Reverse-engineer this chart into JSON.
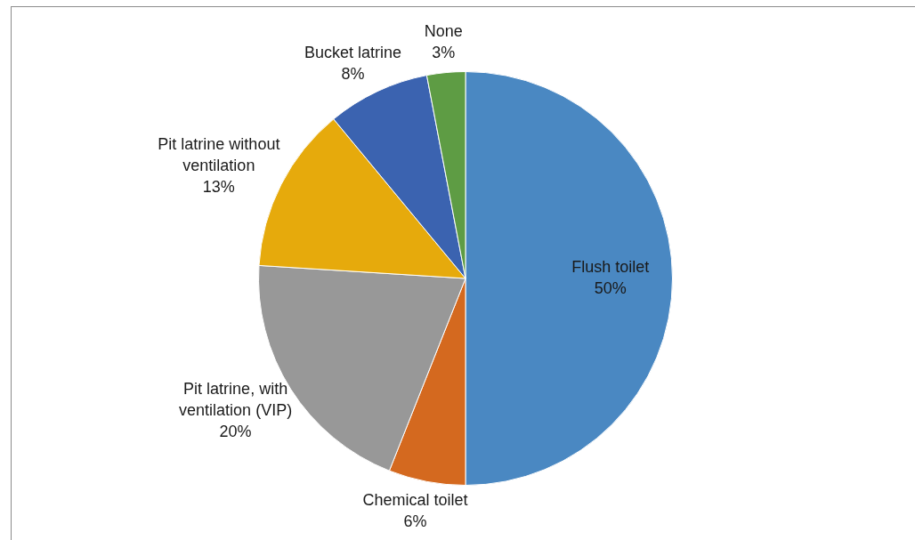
{
  "chart_data": {
    "type": "pie",
    "categories": [
      "Flush toilet",
      "Chemical toilet",
      "Pit latrine, with ventilation (VIP)",
      "Pit latrine without ventilation",
      "Bucket latrine",
      "None"
    ],
    "values": [
      50,
      6,
      20,
      13,
      8,
      3
    ],
    "colors": [
      "#4a88c2",
      "#d4691f",
      "#989898",
      "#e6aa0c",
      "#3b63b0",
      "#5e9c44"
    ],
    "value_labels": [
      "50%",
      "6%",
      "20%",
      "13%",
      "8%",
      "3%"
    ],
    "legend": false
  }
}
